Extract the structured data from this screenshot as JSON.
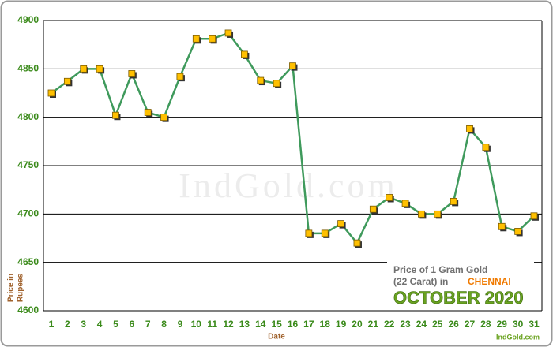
{
  "chart_data": {
    "type": "line",
    "watermark": "IndGold.com",
    "xlabel": "Date",
    "ylabel_lines": [
      "Price in",
      "Rupees"
    ],
    "caption": {
      "line1": "Price of 1 Gram Gold",
      "line2": "(22 Carat) in",
      "city": "CHENNAI",
      "period": "OCTOBER 2020"
    },
    "credit": "IndGold.com",
    "categories": [
      "1",
      "2",
      "3",
      "4",
      "5",
      "6",
      "7",
      "8",
      "9",
      "10",
      "11",
      "12",
      "13",
      "14",
      "15",
      "16",
      "17",
      "18",
      "19",
      "20",
      "21",
      "22",
      "23",
      "24",
      "25",
      "26",
      "27",
      "28",
      "29",
      "30",
      "31"
    ],
    "series": [
      {
        "color": "#3f9a5c",
        "marker_color": "#ffc000",
        "values": [
          4825,
          4837,
          4850,
          4850,
          4802,
          4845,
          4805,
          4800,
          4842,
          4881,
          4881,
          4887,
          4865,
          4838,
          4835,
          4853,
          4680,
          4680,
          4690,
          4670,
          4705,
          4717,
          4711,
          4700,
          4700,
          4713,
          4788,
          4769,
          4687,
          4682,
          4698
        ]
      }
    ],
    "ylim": [
      4600,
      4900
    ],
    "yticks": [
      4600,
      4650,
      4700,
      4750,
      4800,
      4850,
      4900
    ],
    "grid": true
  }
}
